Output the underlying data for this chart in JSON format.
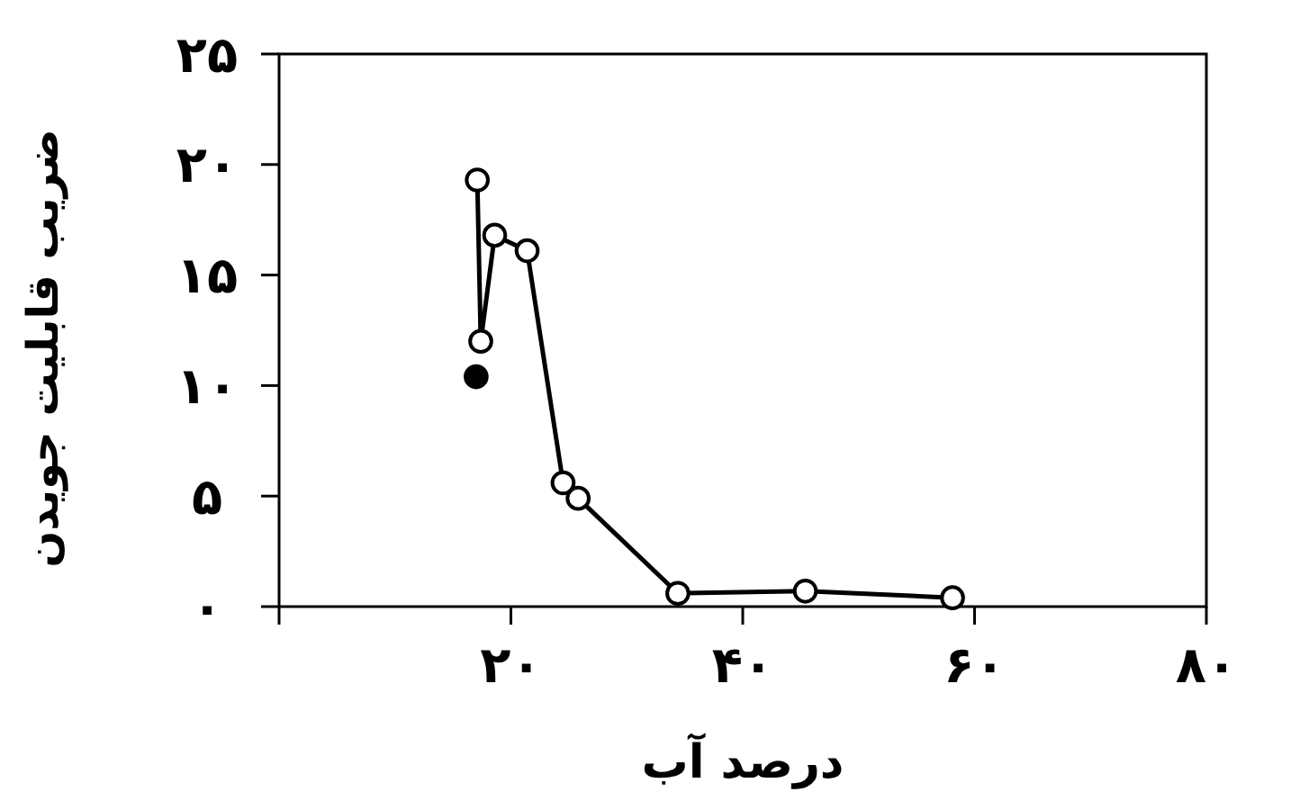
{
  "chart_data": {
    "type": "line",
    "xlabel": "درصد آب",
    "ylabel": "ضریب قابلیت جویدن",
    "xlim": [
      0,
      80
    ],
    "ylim": [
      0,
      25
    ],
    "xticks": [
      {
        "value": 0,
        "label": null
      },
      {
        "value": 20,
        "label": "۲۰"
      },
      {
        "value": 40,
        "label": "۴۰"
      },
      {
        "value": 60,
        "label": "۶۰"
      },
      {
        "value": 80,
        "label": "۸۰"
      }
    ],
    "yticks": [
      {
        "value": 0,
        "label": "۰"
      },
      {
        "value": 5,
        "label": "۵"
      },
      {
        "value": 10,
        "label": "۱۰"
      },
      {
        "value": 15,
        "label": "۱۵"
      },
      {
        "value": 20,
        "label": "۲۰"
      },
      {
        "value": 25,
        "label": "۲۵"
      }
    ],
    "marker": "circle",
    "grid": false,
    "series": [
      {
        "color": "#000000",
        "x": [
          17.1,
          17.4,
          18.6,
          21.4,
          24.5,
          25.8,
          34.4,
          45.4,
          58.1
        ],
        "values": [
          19.3,
          12.0,
          16.8,
          16.1,
          5.6,
          4.9,
          0.6,
          0.7,
          0.4
        ]
      },
      {
        "type": "scatter",
        "color": "#000000",
        "x": [
          17.0
        ],
        "values": [
          10.4
        ]
      }
    ]
  }
}
